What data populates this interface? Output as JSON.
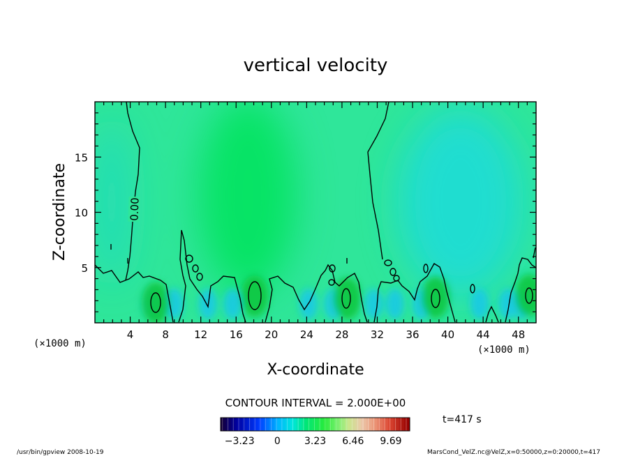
{
  "chart_data": {
    "type": "heatmap",
    "title": "vertical velocity",
    "xlabel": "X-coordinate",
    "ylabel": "Z-coordinate",
    "x_unit": "(×1000 m)",
    "y_unit": "(×1000 m)",
    "xlim": [
      0,
      50
    ],
    "ylim": [
      0,
      20
    ],
    "x_ticks": [
      "4",
      "8",
      "12",
      "16",
      "20",
      "24",
      "28",
      "32",
      "36",
      "40",
      "44",
      "48"
    ],
    "y_ticks": [
      "5",
      "10",
      "15"
    ],
    "contour_label": "0.00",
    "contour_interval_text": "CONTOUR INTERVAL = 2.000E+00",
    "colorbar_ticks": [
      "−3.23",
      "0",
      "3.23",
      "6.46",
      "9.69"
    ],
    "colorbar_range": [
      -4.85,
      11.3
    ],
    "time_label": "t=417 s",
    "positive_cores": [
      {
        "x": 6.9,
        "z": 1.8
      },
      {
        "x": 18.1,
        "z": 2.4
      },
      {
        "x": 28.6,
        "z": 2.2
      },
      {
        "x": 38.6,
        "z": 2.3
      },
      {
        "x": 49.2,
        "z": 2.5
      }
    ],
    "updraft_column_center_x": 18,
    "downdraft_column_center_x": 44
  },
  "footer": {
    "left": "/usr/bin/gpview   2008-10-19",
    "right": "MarsCond_VelZ.nc@VelZ,x=0:50000,z=0:20000,t=417"
  },
  "colors": {
    "field_zero": "#2fe69a",
    "updraft": "#00e14a",
    "downdraft": "#18c8e8",
    "core": "#10c640"
  }
}
